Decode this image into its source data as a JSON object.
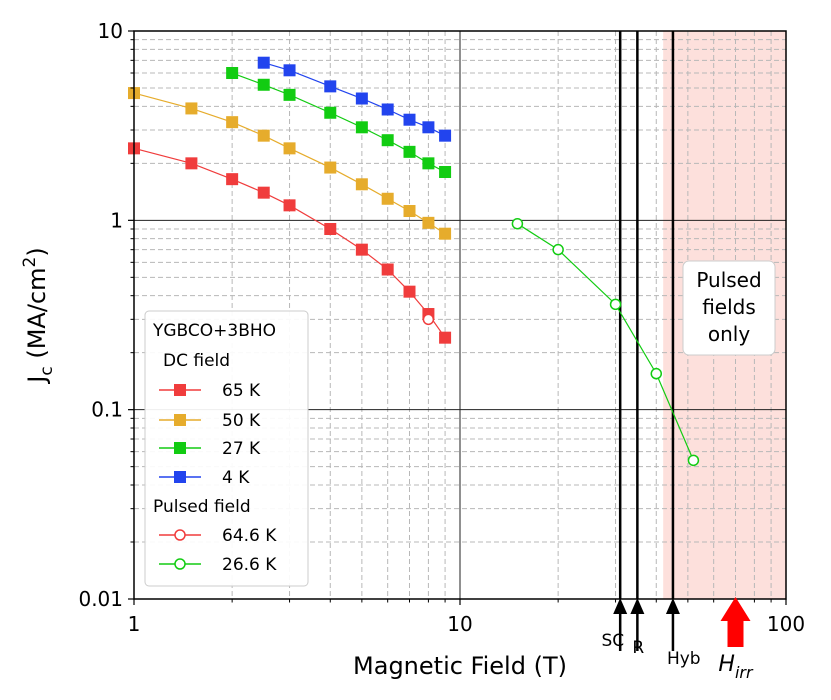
{
  "chart_data": {
    "type": "scatter",
    "xscale": "log",
    "yscale": "log",
    "xlim": [
      1,
      100
    ],
    "ylim": [
      0.01,
      10
    ],
    "xlabel": "Magnetic Field (T)",
    "ylabel_main": "J",
    "ylabel_sub": "c",
    "ylabel_unit": " (MA/cm",
    "ylabel_sup": "2",
    "ylabel_close": ")",
    "x_ticks": [
      {
        "value": 1,
        "label": "1"
      },
      {
        "value": 10,
        "label": "10"
      },
      {
        "value": 100,
        "label": "100"
      }
    ],
    "y_ticks": [
      {
        "value": 0.01,
        "label": "0.01"
      },
      {
        "value": 0.1,
        "label": "0.1"
      },
      {
        "value": 1,
        "label": "1"
      },
      {
        "value": 10,
        "label": "10"
      }
    ],
    "grid": true,
    "shaded_region": {
      "x_from": 42,
      "x_to": 100,
      "color": "#fde0dc",
      "label_lines": [
        "Pulsed",
        "fields",
        "only"
      ]
    },
    "vertical_markers": [
      {
        "x": 31,
        "label": "SC"
      },
      {
        "x": 35,
        "label": "R"
      },
      {
        "x": 45,
        "label": "Hyb"
      }
    ],
    "irr_marker": {
      "x": 70,
      "label_main": "H",
      "label_sub": "irr",
      "color": "#ff0000"
    },
    "legend": {
      "position": "lower-left",
      "title": "YGBCO+3BHO",
      "dc_header": "DC field",
      "pulsed_header": "Pulsed field"
    },
    "series": [
      {
        "name": "65 K",
        "group": "dc",
        "marker": "square",
        "color": "#f03c3c",
        "x": [
          1,
          1.5,
          2,
          2.5,
          3,
          4,
          5,
          6,
          7,
          8,
          9
        ],
        "y": [
          2.4,
          2.0,
          1.65,
          1.4,
          1.2,
          0.9,
          0.7,
          0.55,
          0.42,
          0.32,
          0.24
        ]
      },
      {
        "name": "50 K",
        "group": "dc",
        "marker": "square",
        "color": "#e6ac2c",
        "x": [
          1,
          1.5,
          2,
          2.5,
          3,
          4,
          5,
          6,
          7,
          8,
          9
        ],
        "y": [
          4.7,
          3.9,
          3.3,
          2.8,
          2.4,
          1.9,
          1.55,
          1.3,
          1.12,
          0.97,
          0.85
        ]
      },
      {
        "name": "27 K",
        "group": "dc",
        "marker": "square",
        "color": "#12cc12",
        "x": [
          2,
          2.5,
          3,
          4,
          5,
          6,
          7,
          8,
          9
        ],
        "y": [
          6.0,
          5.2,
          4.6,
          3.7,
          3.1,
          2.65,
          2.3,
          2.0,
          1.8
        ]
      },
      {
        "name": "4 K",
        "group": "dc",
        "marker": "square",
        "color": "#2244ee",
        "x": [
          2.5,
          3,
          4,
          5,
          6,
          7,
          8,
          9
        ],
        "y": [
          6.8,
          6.2,
          5.1,
          4.4,
          3.85,
          3.4,
          3.1,
          2.8
        ]
      },
      {
        "name": "64.6 K",
        "group": "pulsed",
        "marker": "circle",
        "color": "#f03c3c",
        "x": [
          8
        ],
        "y": [
          0.3
        ]
      },
      {
        "name": "26.6 K",
        "group": "pulsed",
        "marker": "circle",
        "color": "#12cc12",
        "x": [
          15,
          20,
          30,
          40,
          52
        ],
        "y": [
          0.96,
          0.7,
          0.36,
          0.155,
          0.054
        ]
      }
    ]
  }
}
